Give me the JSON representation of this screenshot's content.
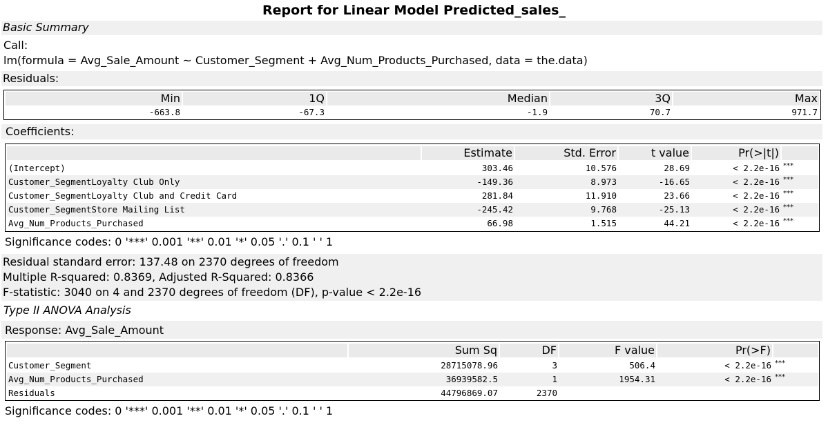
{
  "title": "Report for Linear Model Predicted_sales_",
  "basic_summary": {
    "heading": "Basic Summary",
    "call_label": "Call:",
    "call_formula": "lm(formula = Avg_Sale_Amount ~ Customer_Segment + Avg_Num_Products_Purchased, data = the.data)",
    "residuals_label": "Residuals:"
  },
  "residuals": {
    "headers": [
      "Min",
      "1Q",
      "Median",
      "3Q",
      "Max"
    ],
    "values": [
      "-663.8",
      "-67.3",
      "-1.9",
      "70.7",
      "971.7"
    ]
  },
  "coefficients": {
    "label": "Coefficients:",
    "headers": [
      "",
      "Estimate",
      "Std. Error",
      "t value",
      "Pr(>|t|)"
    ],
    "rows": [
      {
        "name": "(Intercept)",
        "estimate": "303.46",
        "std_error": "10.576",
        "t_value": "28.69",
        "p": "< 2.2e-16",
        "sig": "***"
      },
      {
        "name": "Customer_SegmentLoyalty Club Only",
        "estimate": "-149.36",
        "std_error": "8.973",
        "t_value": "-16.65",
        "p": "< 2.2e-16",
        "sig": "***"
      },
      {
        "name": "Customer_SegmentLoyalty Club and Credit Card",
        "estimate": "281.84",
        "std_error": "11.910",
        "t_value": "23.66",
        "p": "< 2.2e-16",
        "sig": "***"
      },
      {
        "name": "Customer_SegmentStore Mailing List",
        "estimate": "-245.42",
        "std_error": "9.768",
        "t_value": "-25.13",
        "p": "< 2.2e-16",
        "sig": "***"
      },
      {
        "name": "Avg_Num_Products_Purchased",
        "estimate": "66.98",
        "std_error": "1.515",
        "t_value": "44.21",
        "p": "< 2.2e-16",
        "sig": "***"
      }
    ],
    "significance": "Significance codes: 0 '***' 0.001 '**' 0.01 '*' 0.05 '.' 0.1 ' ' 1"
  },
  "model_stats": {
    "residual_se": "Residual standard error: 137.48 on 2370 degrees of freedom",
    "r_squared": "Multiple R-squared: 0.8369, Adjusted R-Squared: 0.8366",
    "f_statistic": "F-statistic: 3040 on 4 and 2370 degrees of freedom (DF), p-value < 2.2e-16"
  },
  "anova": {
    "heading": "Type II ANOVA Analysis",
    "response": "Response: Avg_Sale_Amount",
    "headers": [
      "",
      "Sum Sq",
      "DF",
      "F value",
      "Pr(>F)"
    ],
    "rows": [
      {
        "name": "Customer_Segment",
        "sum_sq": "28715078.96",
        "df": "3",
        "f_value": "506.4",
        "p": "< 2.2e-16",
        "sig": "***"
      },
      {
        "name": "Avg_Num_Products_Purchased",
        "sum_sq": "36939582.5",
        "df": "1",
        "f_value": "1954.31",
        "p": "< 2.2e-16",
        "sig": "***"
      },
      {
        "name": "Residuals",
        "sum_sq": "44796869.07",
        "df": "2370",
        "f_value": "",
        "p": "",
        "sig": ""
      }
    ],
    "significance": "Significance codes: 0 '***' 0.001 '**' 0.01 '*' 0.05 '.' 0.1 ' ' 1"
  }
}
